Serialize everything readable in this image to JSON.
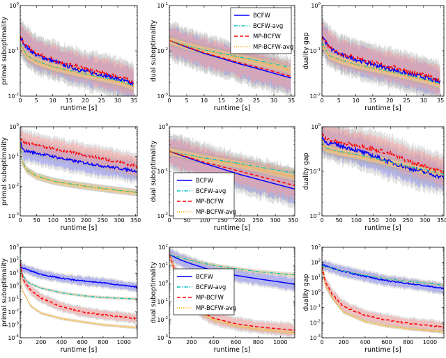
{
  "legend_labels": [
    "BCFW",
    "BCFW-avg",
    "MP-BCFW",
    "MP-BCFW-avg"
  ],
  "series_styles": {
    "BCFW": {
      "color": "#0000ff",
      "dash": "solid"
    },
    "BCFW-avg": {
      "color": "#00bfbf",
      "dash": "dash-dot"
    },
    "MP-BCFW": {
      "color": "#ff0000",
      "dash": "dashed"
    },
    "MP-BCFW-avg": {
      "color": "#ffa500",
      "dash": "dotted"
    }
  },
  "band_colors": {
    "BCFW": "#8080ff",
    "MP-BCFW": "#ff9999",
    "avg": "#ffd27f",
    "outer": "#aaaaaa"
  },
  "chart_data": [
    {
      "type": "line",
      "xlabel": "runtime [s]",
      "ylabel": "primal suboptimality",
      "yscale": "log",
      "xlim": [
        0,
        36
      ],
      "ylim": [
        0.01,
        1
      ],
      "xticks": [
        0,
        5,
        10,
        15,
        20,
        25,
        30,
        35
      ],
      "yticks_exp": [
        -2,
        -1,
        0
      ],
      "grid": false,
      "legend": null,
      "series": [
        {
          "name": "BCFW",
          "x": [
            0,
            2,
            5,
            10,
            15,
            20,
            25,
            30,
            35
          ],
          "y": [
            0.2,
            0.12,
            0.08,
            0.06,
            0.045,
            0.035,
            0.03,
            0.024,
            0.018
          ]
        },
        {
          "name": "BCFW-avg",
          "x": [
            0,
            2,
            5,
            10,
            15,
            20,
            25,
            30,
            35
          ],
          "y": [
            0.14,
            0.08,
            0.06,
            0.045,
            0.037,
            0.031,
            0.026,
            0.022,
            0.017
          ]
        },
        {
          "name": "MP-BCFW",
          "x": [
            0,
            2,
            5,
            10,
            15,
            20,
            25,
            30,
            35
          ],
          "y": [
            0.2,
            0.13,
            0.085,
            0.065,
            0.05,
            0.04,
            0.033,
            0.027,
            0.02
          ]
        },
        {
          "name": "MP-BCFW-avg",
          "x": [
            0,
            2,
            5,
            10,
            15,
            20,
            25,
            30,
            35
          ],
          "y": [
            0.13,
            0.078,
            0.058,
            0.044,
            0.036,
            0.03,
            0.025,
            0.021,
            0.016
          ]
        }
      ]
    },
    {
      "type": "line",
      "xlabel": "runtime [s]",
      "ylabel": "dual suboptimality",
      "yscale": "log",
      "xlim": [
        0,
        36
      ],
      "ylim": [
        0.001,
        0.1
      ],
      "xticks": [
        0,
        5,
        10,
        15,
        20,
        25,
        30,
        35
      ],
      "yticks_exp": [
        -3,
        -2,
        -1
      ],
      "grid": false,
      "legend": "top-right",
      "series": [
        {
          "name": "BCFW",
          "x": [
            0,
            5,
            10,
            15,
            20,
            25,
            30,
            35
          ],
          "y": [
            0.017,
            0.012,
            0.0088,
            0.0068,
            0.0052,
            0.0041,
            0.0032,
            0.0025
          ]
        },
        {
          "name": "BCFW-avg",
          "x": [
            0,
            5,
            10,
            15,
            20,
            25,
            30,
            34
          ],
          "y": [
            0.017,
            0.013,
            0.0105,
            0.0088,
            0.0074,
            0.0062,
            0.0052,
            0.0044
          ]
        },
        {
          "name": "MP-BCFW",
          "x": [
            0,
            5,
            10,
            15,
            20,
            25,
            30,
            35
          ],
          "y": [
            0.017,
            0.0123,
            0.0091,
            0.0071,
            0.0055,
            0.0044,
            0.0035,
            0.0027
          ]
        },
        {
          "name": "MP-BCFW-avg",
          "x": [
            0,
            5,
            10,
            15,
            20,
            25,
            30,
            35
          ],
          "y": [
            0.017,
            0.0128,
            0.0102,
            0.0084,
            0.007,
            0.0057,
            0.0047,
            0.0037
          ]
        }
      ]
    },
    {
      "type": "line",
      "xlabel": "runtime [s]",
      "ylabel": "duality gap",
      "yscale": "log",
      "xlim": [
        0,
        36
      ],
      "ylim": [
        0.01,
        1
      ],
      "xticks": [
        0,
        5,
        10,
        15,
        20,
        25,
        30,
        35
      ],
      "yticks_exp": [
        -2,
        -1,
        0
      ],
      "grid": false,
      "legend": null,
      "series": [
        {
          "name": "BCFW",
          "x": [
            0,
            2,
            5,
            10,
            15,
            20,
            25,
            30,
            35
          ],
          "y": [
            0.22,
            0.12,
            0.085,
            0.065,
            0.05,
            0.04,
            0.032,
            0.026,
            0.02
          ]
        },
        {
          "name": "BCFW-avg",
          "x": [
            0,
            2,
            5,
            10,
            15,
            20,
            25,
            30,
            35
          ],
          "y": [
            0.15,
            0.08,
            0.065,
            0.05,
            0.042,
            0.035,
            0.029,
            0.024,
            0.019
          ]
        },
        {
          "name": "MP-BCFW",
          "x": [
            0,
            2,
            5,
            10,
            15,
            20,
            25,
            30,
            35
          ],
          "y": [
            0.22,
            0.13,
            0.09,
            0.07,
            0.055,
            0.045,
            0.036,
            0.029,
            0.022
          ]
        },
        {
          "name": "MP-BCFW-avg",
          "x": [
            0,
            2,
            5,
            10,
            15,
            20,
            25,
            30,
            35
          ],
          "y": [
            0.14,
            0.078,
            0.063,
            0.049,
            0.041,
            0.034,
            0.028,
            0.023,
            0.018
          ]
        }
      ]
    },
    {
      "type": "line",
      "xlabel": "runtime [s]",
      "ylabel": "primal suboptimality",
      "yscale": "log",
      "xlim": [
        0,
        355
      ],
      "ylim": [
        0.001,
        1
      ],
      "xticks": [
        0,
        50,
        100,
        150,
        200,
        250,
        300,
        350
      ],
      "yticks_exp": [
        -3,
        -2,
        -1,
        0
      ],
      "grid": false,
      "legend": null,
      "series": [
        {
          "name": "BCFW",
          "x": [
            0,
            10,
            50,
            100,
            150,
            200,
            250,
            300,
            355
          ],
          "y": [
            0.3,
            0.16,
            0.13,
            0.1,
            0.075,
            0.06,
            0.048,
            0.04,
            0.032
          ]
        },
        {
          "name": "BCFW-avg",
          "x": [
            0,
            5,
            20,
            50,
            100,
            150,
            200,
            250,
            300,
            355
          ],
          "y": [
            0.3,
            0.07,
            0.035,
            0.022,
            0.015,
            0.012,
            0.01,
            0.0085,
            0.0072,
            0.0062
          ]
        },
        {
          "name": "MP-BCFW",
          "x": [
            0,
            10,
            50,
            100,
            150,
            200,
            250,
            300,
            355
          ],
          "y": [
            0.4,
            0.3,
            0.24,
            0.18,
            0.14,
            0.11,
            0.085,
            0.065,
            0.045
          ]
        },
        {
          "name": "MP-BCFW-avg",
          "x": [
            0,
            5,
            20,
            50,
            100,
            150,
            200,
            250,
            300,
            355
          ],
          "y": [
            0.3,
            0.068,
            0.034,
            0.021,
            0.0145,
            0.0116,
            0.0097,
            0.0082,
            0.007,
            0.006
          ]
        }
      ]
    },
    {
      "type": "line",
      "xlabel": "runtime [s]",
      "ylabel": "dual suboptimality",
      "yscale": "log",
      "xlim": [
        0,
        355
      ],
      "ylim": [
        0.01,
        1
      ],
      "xticks": [
        0,
        50,
        100,
        150,
        200,
        250,
        300,
        350
      ],
      "yticks_exp": [
        -2,
        -1,
        0
      ],
      "grid": false,
      "legend": "lower-left",
      "series": [
        {
          "name": "BCFW",
          "x": [
            0,
            100,
            200,
            355
          ],
          "y": [
            0.28,
            0.15,
            0.085,
            0.04
          ]
        },
        {
          "name": "BCFW-avg",
          "x": [
            0,
            100,
            200,
            355
          ],
          "y": [
            0.28,
            0.2,
            0.15,
            0.09
          ]
        },
        {
          "name": "MP-BCFW",
          "x": [
            0,
            100,
            200,
            355
          ],
          "y": [
            0.28,
            0.16,
            0.1,
            0.048
          ]
        },
        {
          "name": "MP-BCFW-avg",
          "x": [
            0,
            100,
            200,
            355
          ],
          "y": [
            0.28,
            0.19,
            0.14,
            0.075
          ]
        }
      ]
    },
    {
      "type": "line",
      "xlabel": "runtime [s]",
      "ylabel": "duality gap",
      "yscale": "log",
      "xlim": [
        0,
        355
      ],
      "ylim": [
        0.01,
        1
      ],
      "xticks": [
        0,
        50,
        100,
        150,
        200,
        250,
        300,
        350
      ],
      "yticks_exp": [
        -2,
        -1,
        0
      ],
      "grid": false,
      "legend": null,
      "series": [
        {
          "name": "BCFW",
          "x": [
            0,
            10,
            50,
            100,
            150,
            200,
            250,
            300,
            355
          ],
          "y": [
            0.6,
            0.45,
            0.38,
            0.3,
            0.22,
            0.16,
            0.12,
            0.095,
            0.072
          ]
        },
        {
          "name": "BCFW-avg",
          "x": [
            0,
            10,
            50,
            100,
            150,
            200,
            250,
            300,
            355
          ],
          "y": [
            0.45,
            0.33,
            0.28,
            0.24,
            0.2,
            0.16,
            0.13,
            0.11,
            0.085
          ]
        },
        {
          "name": "MP-BCFW",
          "x": [
            0,
            10,
            50,
            100,
            150,
            200,
            250,
            300,
            355
          ],
          "y": [
            0.65,
            0.55,
            0.45,
            0.38,
            0.32,
            0.25,
            0.17,
            0.13,
            0.095
          ]
        },
        {
          "name": "MP-BCFW-avg",
          "x": [
            0,
            10,
            50,
            100,
            150,
            200,
            250,
            300,
            355
          ],
          "y": [
            0.44,
            0.32,
            0.27,
            0.23,
            0.19,
            0.155,
            0.125,
            0.1,
            0.08
          ]
        }
      ]
    },
    {
      "type": "line",
      "xlabel": "runtime [s]",
      "ylabel": "primal suboptimality",
      "yscale": "log",
      "xlim": [
        0,
        1130
      ],
      "ylim": [
        0.0001,
        1000
      ],
      "xticks": [
        0,
        200,
        400,
        600,
        800,
        1000
      ],
      "yticks_exp": [
        -4,
        -3,
        -2,
        -1,
        0,
        1,
        2,
        3
      ],
      "grid": false,
      "legend": null,
      "series": [
        {
          "name": "BCFW",
          "x": [
            0,
            100,
            200,
            400,
            600,
            800,
            1000,
            1130
          ],
          "y": [
            30,
            15,
            8,
            4,
            2.5,
            1.8,
            1.1,
            0.8
          ]
        },
        {
          "name": "BCFW-avg",
          "x": [
            0,
            50,
            100,
            200,
            400,
            600,
            800,
            1130
          ],
          "y": [
            20,
            3,
            1.5,
            0.7,
            0.3,
            0.18,
            0.13,
            0.1
          ]
        },
        {
          "name": "MP-BCFW",
          "x": [
            0,
            30,
            100,
            200,
            400,
            600,
            800,
            1000,
            1130
          ],
          "y": [
            60,
            3,
            0.5,
            0.12,
            0.025,
            0.01,
            0.006,
            0.004,
            0.003
          ]
        },
        {
          "name": "MP-BCFW-avg",
          "x": [
            0,
            20,
            100,
            200,
            400,
            600,
            800,
            1130
          ],
          "y": [
            20,
            0.5,
            0.03,
            0.008,
            0.003,
            0.0017,
            0.001,
            0.0006
          ]
        }
      ]
    },
    {
      "type": "line",
      "xlabel": "runtime [s]",
      "ylabel": "dual suboptimality",
      "yscale": "log",
      "xlim": [
        0,
        1130
      ],
      "ylim": [
        0.001,
        100
      ],
      "xticks": [
        0,
        200,
        400,
        600,
        800,
        1000
      ],
      "yticks_exp": [
        -3,
        -2,
        -1,
        0,
        1,
        2
      ],
      "grid": false,
      "legend": "center-left",
      "series": [
        {
          "name": "BCFW",
          "x": [
            0,
            100,
            200,
            400,
            600,
            800,
            1000,
            1130
          ],
          "y": [
            40,
            20,
            12,
            5,
            2.8,
            1.8,
            1.2,
            0.9
          ]
        },
        {
          "name": "BCFW-avg",
          "x": [
            0,
            200,
            400,
            600,
            800,
            1130
          ],
          "y": [
            40,
            18,
            10,
            6.5,
            4.5,
            3
          ]
        },
        {
          "name": "MP-BCFW",
          "x": [
            0,
            50,
            100,
            200,
            300,
            400,
            600,
            800,
            1130
          ],
          "y": [
            40,
            5,
            1,
            0.1,
            0.025,
            0.012,
            0.006,
            0.004,
            0.0026
          ]
        },
        {
          "name": "MP-BCFW-avg",
          "x": [
            0,
            50,
            100,
            200,
            300,
            400,
            600,
            800,
            1130
          ],
          "y": [
            40,
            4,
            0.8,
            0.08,
            0.02,
            0.01,
            0.0045,
            0.003,
            0.0019
          ]
        }
      ]
    },
    {
      "type": "line",
      "xlabel": "runtime [s]",
      "ylabel": "duality gap",
      "yscale": "log",
      "xlim": [
        0,
        1130
      ],
      "ylim": [
        0.001,
        1000
      ],
      "xticks": [
        0,
        200,
        400,
        600,
        800,
        1000
      ],
      "yticks_exp": [
        -3,
        -2,
        -1,
        0,
        1,
        2,
        3
      ],
      "grid": false,
      "legend": null,
      "series": [
        {
          "name": "BCFW",
          "x": [
            0,
            100,
            200,
            400,
            600,
            800,
            1000,
            1130
          ],
          "y": [
            70,
            40,
            25,
            12,
            6,
            4,
            2.5,
            1.8
          ]
        },
        {
          "name": "BCFW-avg",
          "x": [
            0,
            100,
            200,
            400,
            600,
            800,
            1000,
            1130
          ],
          "y": [
            60,
            38,
            26,
            14,
            8,
            5.5,
            4,
            3
          ]
        },
        {
          "name": "MP-BCFW",
          "x": [
            0,
            30,
            100,
            200,
            400,
            600,
            800,
            1130
          ],
          "y": [
            60,
            5,
            0.7,
            0.12,
            0.03,
            0.015,
            0.009,
            0.005
          ]
        },
        {
          "name": "MP-BCFW-avg",
          "x": [
            0,
            30,
            100,
            200,
            400,
            600,
            800,
            1130
          ],
          "y": [
            40,
            3,
            0.4,
            0.05,
            0.012,
            0.006,
            0.004,
            0.0025
          ]
        }
      ]
    }
  ]
}
